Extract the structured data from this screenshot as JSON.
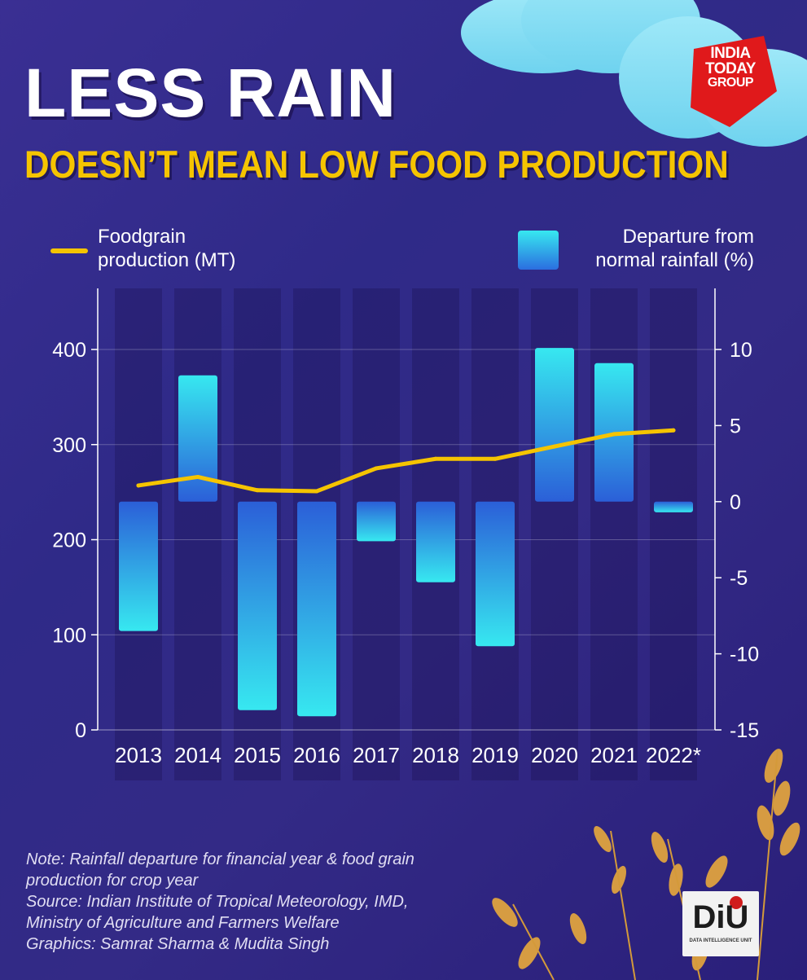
{
  "header": {
    "title": "LESS RAIN",
    "subtitle": "DOESN’T MEAN LOW FOOD PRODUCTION"
  },
  "brand": {
    "logo_lines": [
      "INDIA",
      "TODAY",
      "GROUP"
    ],
    "logo_color": "#e0191b",
    "unit_logo": "DiU",
    "unit_logo_sub": "DATA INTELLIGENCE UNIT"
  },
  "legend": {
    "line_label_1": "Foodgrain",
    "line_label_2": "production (MT)",
    "bar_label_1": "Departure from",
    "bar_label_2": "normal rainfall (%)"
  },
  "colors": {
    "line": "#f5c400",
    "bar_top": "#37e8f0",
    "bar_bottom": "#2b5fd8",
    "title_accent": "#f5c400"
  },
  "chart_data": {
    "type": "bar",
    "categories": [
      "2013",
      "2014",
      "2015",
      "2016",
      "2017",
      "2018",
      "2019",
      "2020",
      "2021",
      "2022*"
    ],
    "series": [
      {
        "name": "Departure from normal rainfall (%)",
        "type": "bar",
        "axis": "right",
        "values": [
          -8.5,
          8.3,
          -13.7,
          -14.1,
          -2.6,
          -5.3,
          -9.5,
          10.1,
          9.1,
          -0.7
        ]
      },
      {
        "name": "Foodgrain production (MT)",
        "type": "line",
        "axis": "left",
        "values": [
          257,
          266,
          252,
          251,
          275,
          285,
          285,
          298,
          311,
          315
        ]
      }
    ],
    "y_left": {
      "ylim": [
        0,
        400
      ],
      "ticks": [
        "0",
        "100",
        "200",
        "300",
        "400"
      ]
    },
    "y_right": {
      "ylim": [
        -15,
        10
      ],
      "ticks": [
        "-15",
        "-10",
        "-5",
        "0",
        "5",
        "10"
      ]
    },
    "grid": true
  },
  "notes": [
    "Note: Rainfall departure for financial year & food grain",
    "production for crop year",
    "Source: Indian Institute of Tropical Meteorology, IMD,",
    "Ministry of Agriculture and Farmers Welfare",
    "Graphics: Samrat Sharma & Mudita Singh"
  ]
}
